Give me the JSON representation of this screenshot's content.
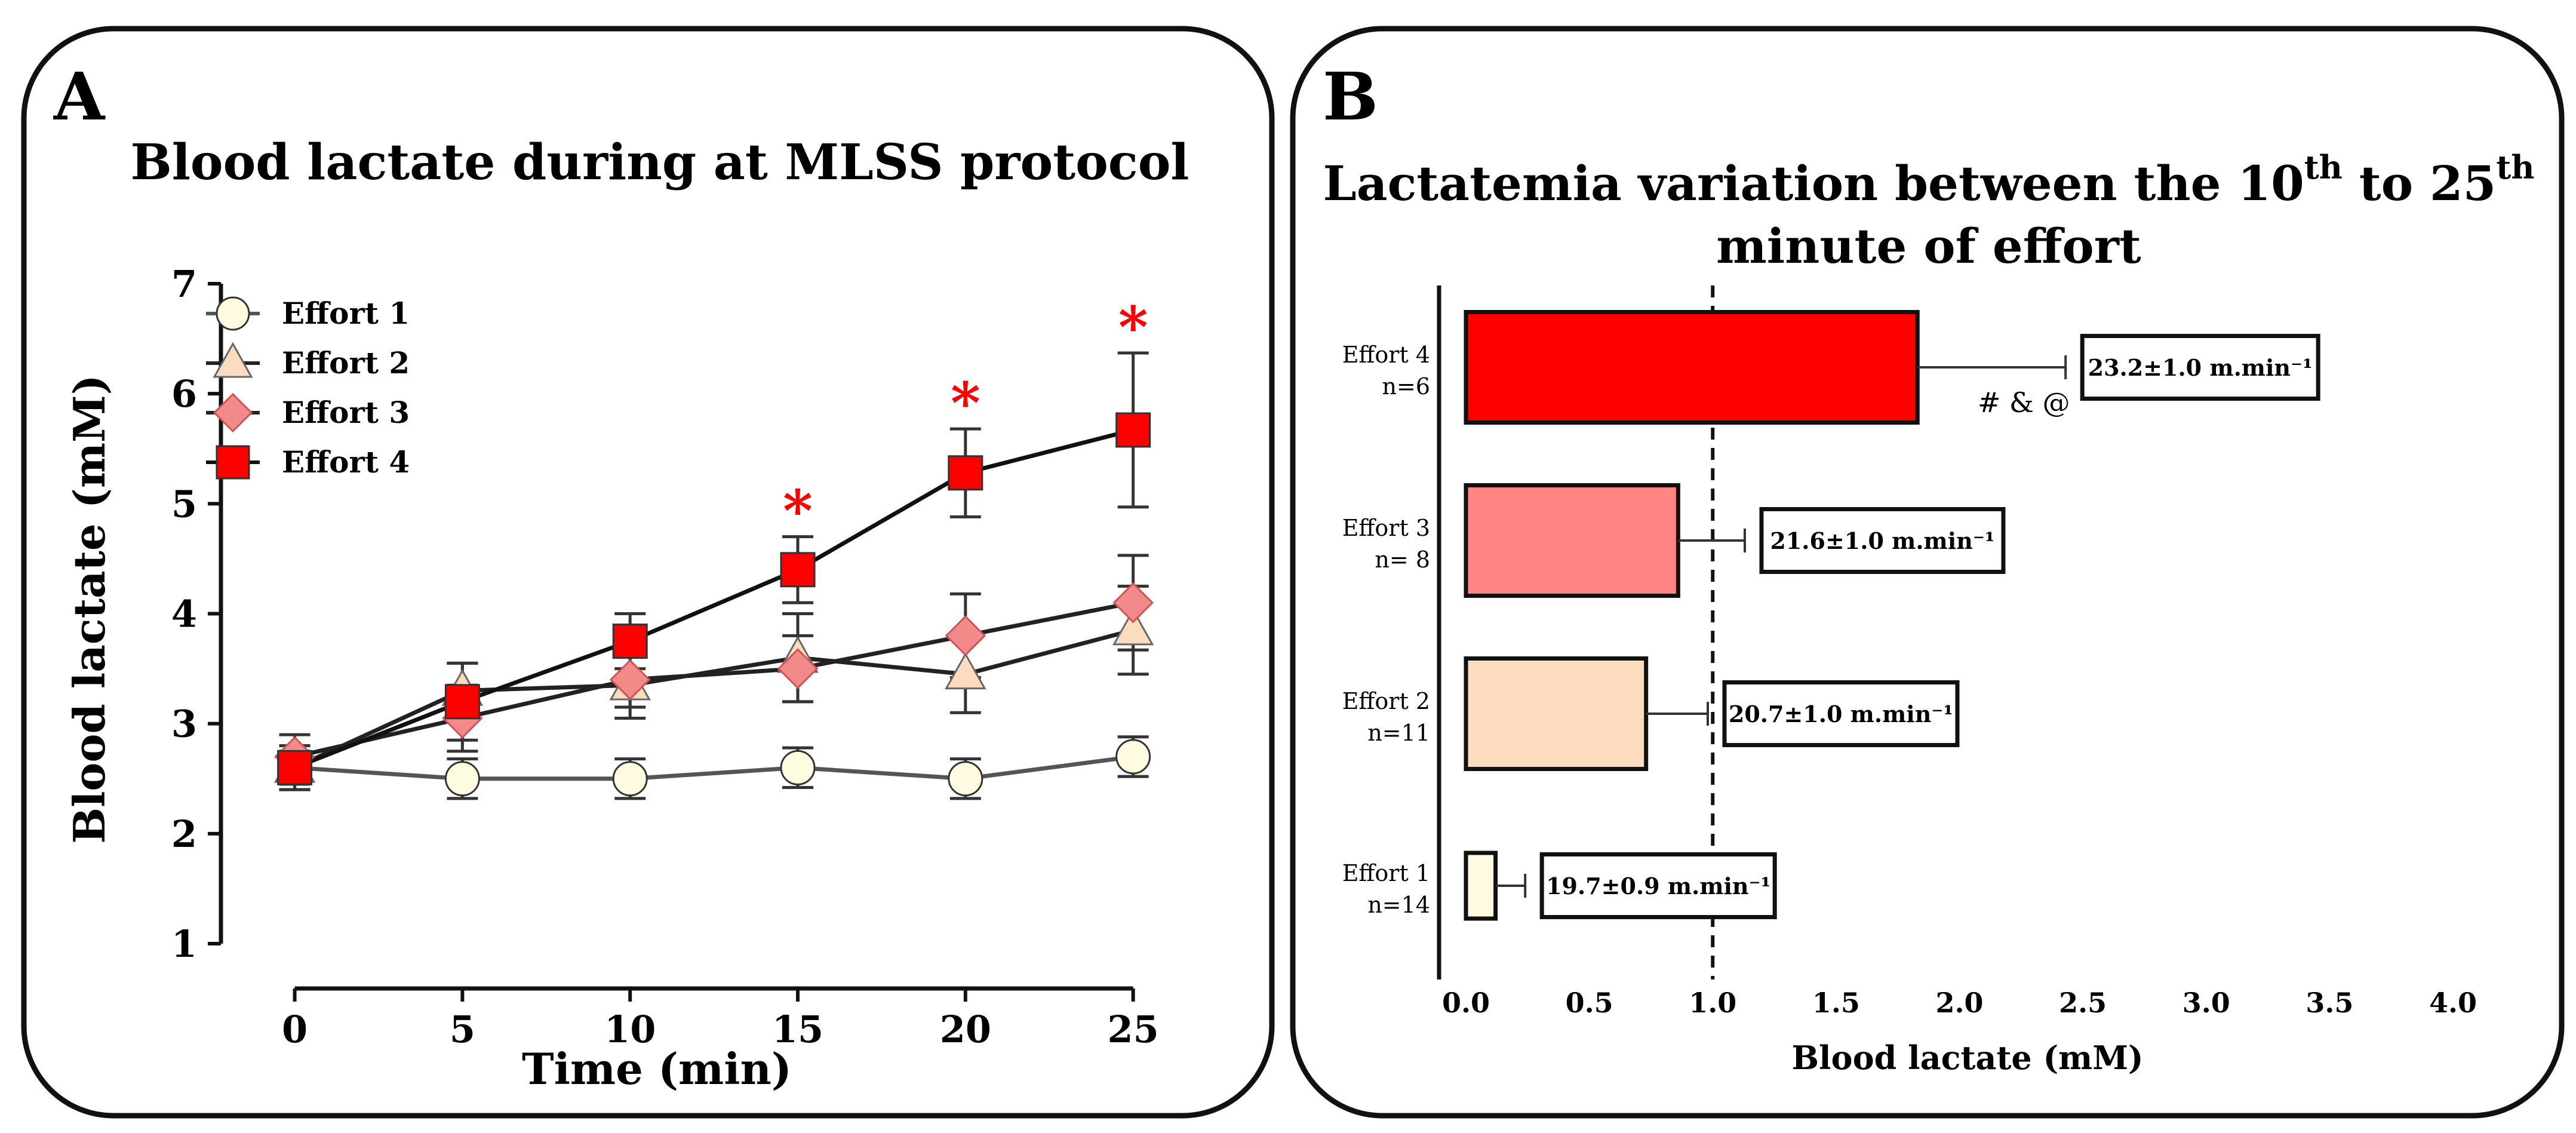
{
  "chart_data": [
    {
      "panel_label": "A",
      "type": "line",
      "title": "Blood lactate during at MLSS protocol",
      "xlabel": "Time (min)",
      "ylabel": "Blood lactate (mM)",
      "x": [
        0,
        5,
        10,
        15,
        20,
        25
      ],
      "xticks": [
        "0",
        "5",
        "10",
        "15",
        "20",
        "25"
      ],
      "yticks": [
        "1",
        "2",
        "3",
        "4",
        "5",
        "6",
        "7"
      ],
      "xlim": [
        -2.2,
        27
      ],
      "ylim": [
        1,
        7
      ],
      "legend_position": "top-left",
      "series": [
        {
          "name": "Effort 1",
          "marker": "circle",
          "color": "#FFFBE0",
          "line_color": "#555555",
          "values": [
            2.6,
            2.5,
            2.5,
            2.6,
            2.5,
            2.7
          ],
          "errors": [
            0.15,
            0.18,
            0.18,
            0.18,
            0.18,
            0.18
          ]
        },
        {
          "name": "Effort 2",
          "marker": "triangle",
          "color": "#FCDCBE",
          "line_color": "#222222",
          "values": [
            2.6,
            3.3,
            3.35,
            3.6,
            3.45,
            3.85
          ],
          "errors": [
            0.2,
            0.25,
            0.3,
            0.4,
            0.35,
            0.4
          ]
        },
        {
          "name": "Effort 3",
          "marker": "diamond",
          "color": "#F38A8A",
          "line_color": "#222222",
          "values": [
            2.7,
            3.05,
            3.4,
            3.5,
            3.8,
            4.1
          ],
          "errors": [
            0.2,
            0.3,
            0.25,
            0.3,
            0.38,
            0.43
          ]
        },
        {
          "name": "Effort 4",
          "marker": "square",
          "color": "#FF0000",
          "line_color": "#111111",
          "values": [
            2.6,
            3.2,
            3.75,
            4.4,
            5.28,
            5.67
          ],
          "errors": [
            0.2,
            0.35,
            0.25,
            0.3,
            0.4,
            0.7
          ]
        }
      ],
      "significance": {
        "symbol": "*",
        "color": "#FF0000",
        "x": [
          15,
          20,
          25
        ]
      }
    },
    {
      "panel_label": "B",
      "type": "bar",
      "orientation": "horizontal",
      "title_line1": "Lactatemia variation between the 10",
      "title_sup1": "th",
      "title_mid": " to 25",
      "title_sup2": "th",
      "title_line2": "minute of effort",
      "xlabel": "Blood lactate (mM)",
      "xlim": [
        0,
        4.0
      ],
      "xticks": [
        "0.0",
        "0.5",
        "1.0",
        "1.5",
        "2.0",
        "2.5",
        "3.0",
        "3.5",
        "4.0"
      ],
      "reference_line": 1.0,
      "bars": [
        {
          "label": "Effort 4",
          "n": "n=6",
          "value": 1.83,
          "error": 0.6,
          "color": "#FF0000",
          "annotation": "23.2±1.0 m.min⁻¹",
          "marks": "# & @"
        },
        {
          "label": "Effort 3",
          "n": "n= 8",
          "value": 0.86,
          "error": 0.27,
          "color": "#FF8484",
          "annotation": "21.6±1.0 m.min⁻¹",
          "marks": ""
        },
        {
          "label": "Effort 2",
          "n": "n=11",
          "value": 0.73,
          "error": 0.25,
          "color": "#FCDDC0",
          "annotation": "20.7±1.0 m.min⁻¹",
          "marks": ""
        },
        {
          "label": "Effort 1",
          "n": "n=14",
          "value": 0.12,
          "error": 0.12,
          "color": "#FFFBE0",
          "annotation": "19.7±0.9 m.min⁻¹",
          "marks": ""
        }
      ]
    }
  ]
}
